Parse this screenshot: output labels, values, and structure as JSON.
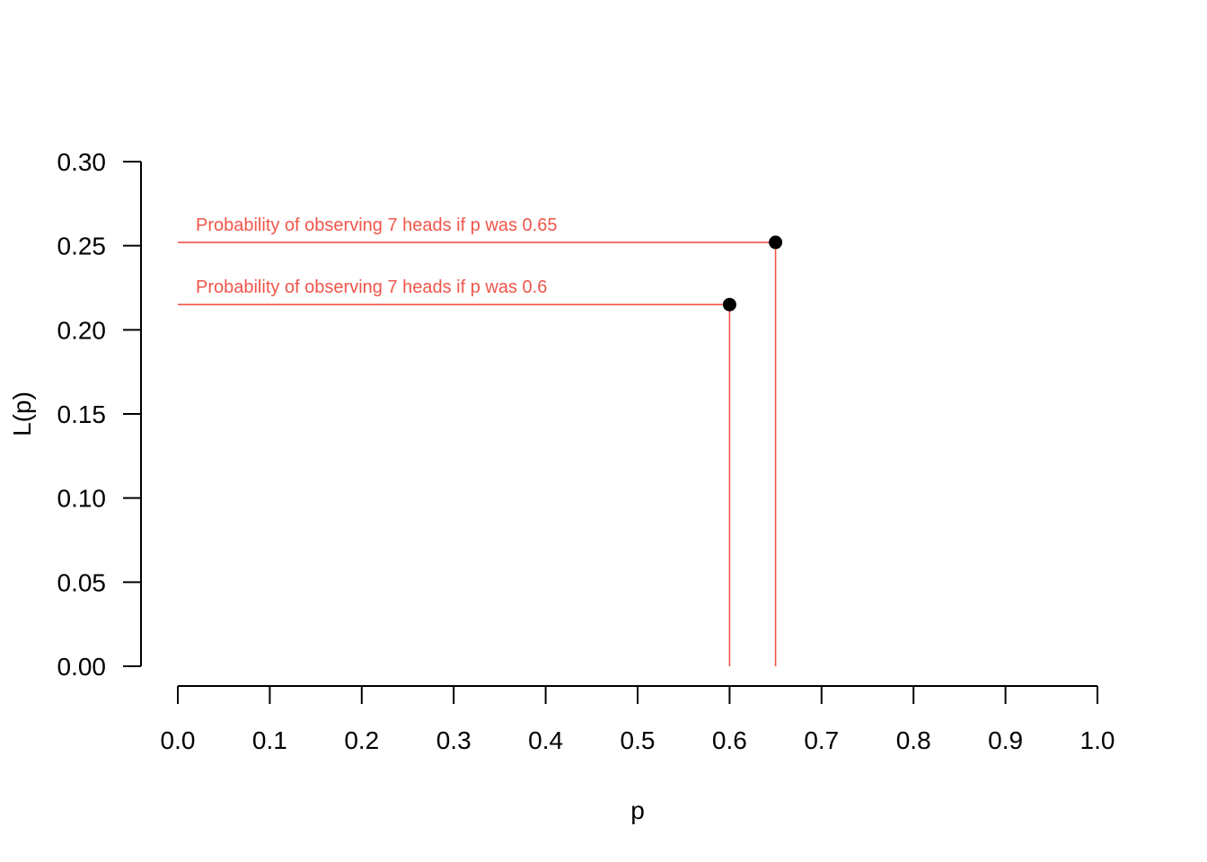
{
  "chart_data": {
    "type": "scatter",
    "xlabel": "p",
    "ylabel": "L(p)",
    "xlim": [
      0,
      1
    ],
    "ylim": [
      0,
      0.3
    ],
    "x_ticks": [
      "0.0",
      "0.1",
      "0.2",
      "0.3",
      "0.4",
      "0.5",
      "0.6",
      "0.7",
      "0.8",
      "0.9",
      "1.0"
    ],
    "y_ticks": [
      "0.00",
      "0.05",
      "0.10",
      "0.15",
      "0.20",
      "0.25",
      "0.30"
    ],
    "grid": false,
    "colors": {
      "points": "#000000",
      "guides": "#f0554a",
      "axes": "#000000"
    },
    "points": [
      {
        "x": 0.6,
        "y": 0.215,
        "annotation": "Probability of observing 7 heads if p was 0.6"
      },
      {
        "x": 0.65,
        "y": 0.252,
        "annotation": "Probability of observing 7 heads if p was 0.65"
      }
    ]
  }
}
